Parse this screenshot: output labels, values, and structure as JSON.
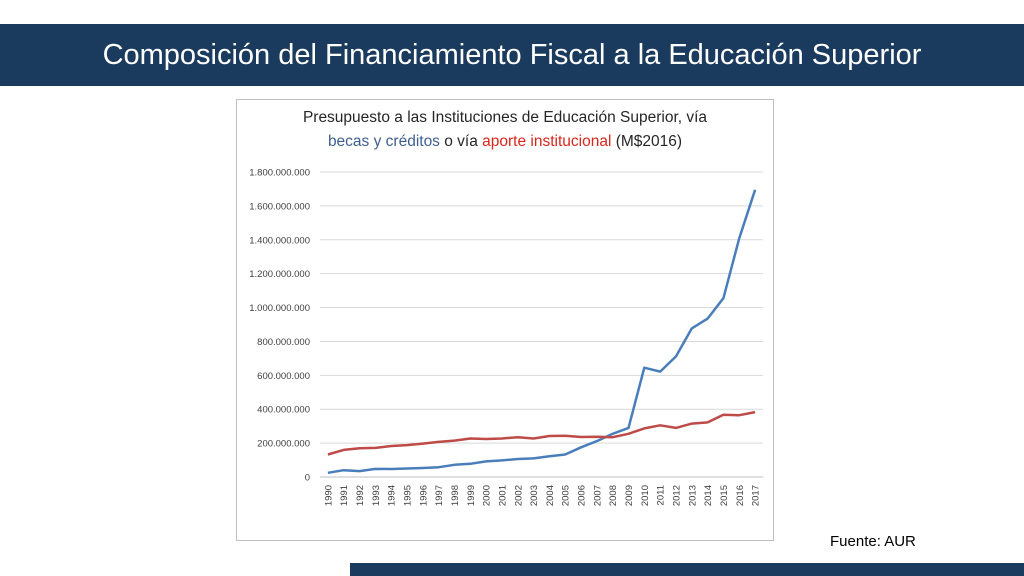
{
  "slide": {
    "title": "Composición del Financiamiento Fiscal a la Educación Superior",
    "source": "Fuente: AUR"
  },
  "colors": {
    "header_bg": "#1a3a5e",
    "becas_line": "#4a7ebb",
    "aporte_line": "#be4b48",
    "title_blue": "#3e5f8f",
    "title_red": "#d9261c"
  },
  "chart_data": {
    "type": "line",
    "title_parts": {
      "line1": "Presupuesto a las Instituciones de Educación Superior, vía",
      "blue": "becas y créditos",
      "middle": " o vía ",
      "red": "aporte institucional",
      "end": " (M$2016)"
    },
    "x": [
      "1990",
      "1991",
      "1992",
      "1993",
      "1994",
      "1995",
      "1996",
      "1997",
      "1998",
      "1999",
      "2000",
      "2001",
      "2002",
      "2003",
      "2004",
      "2005",
      "2006",
      "2007",
      "2008",
      "2009",
      "2010",
      "2011",
      "2012",
      "2013",
      "2014",
      "2015",
      "2016",
      "2017"
    ],
    "ylim": [
      0,
      1800000000
    ],
    "yticks": [
      0,
      200000000,
      400000000,
      600000000,
      800000000,
      1000000000,
      1200000000,
      1400000000,
      1600000000,
      1800000000
    ],
    "ytick_labels": [
      "0",
      "200.000.000",
      "400.000.000",
      "600.000.000",
      "800.000.000",
      "1.000.000.000",
      "1.200.000.000",
      "1.400.000.000",
      "1.600.000.000",
      "1.800.000.000"
    ],
    "grid": true,
    "legend": "none",
    "series": [
      {
        "key": "becas",
        "values": [
          25000000,
          40000000,
          35000000,
          48000000,
          47000000,
          50000000,
          53000000,
          58000000,
          72000000,
          78000000,
          92000000,
          98000000,
          106000000,
          110000000,
          122000000,
          133000000,
          175000000,
          212000000,
          255000000,
          290000000,
          645000000,
          622000000,
          712000000,
          877000000,
          935000000,
          1055000000,
          1410000000,
          1695000000
        ]
      },
      {
        "key": "aporte",
        "values": [
          133000000,
          160000000,
          170000000,
          172000000,
          183000000,
          188000000,
          197000000,
          207000000,
          215000000,
          227000000,
          224000000,
          227000000,
          235000000,
          227000000,
          242000000,
          243000000,
          236000000,
          237000000,
          235000000,
          255000000,
          287000000,
          305000000,
          290000000,
          315000000,
          322000000,
          367000000,
          365000000,
          383000000
        ]
      }
    ]
  }
}
